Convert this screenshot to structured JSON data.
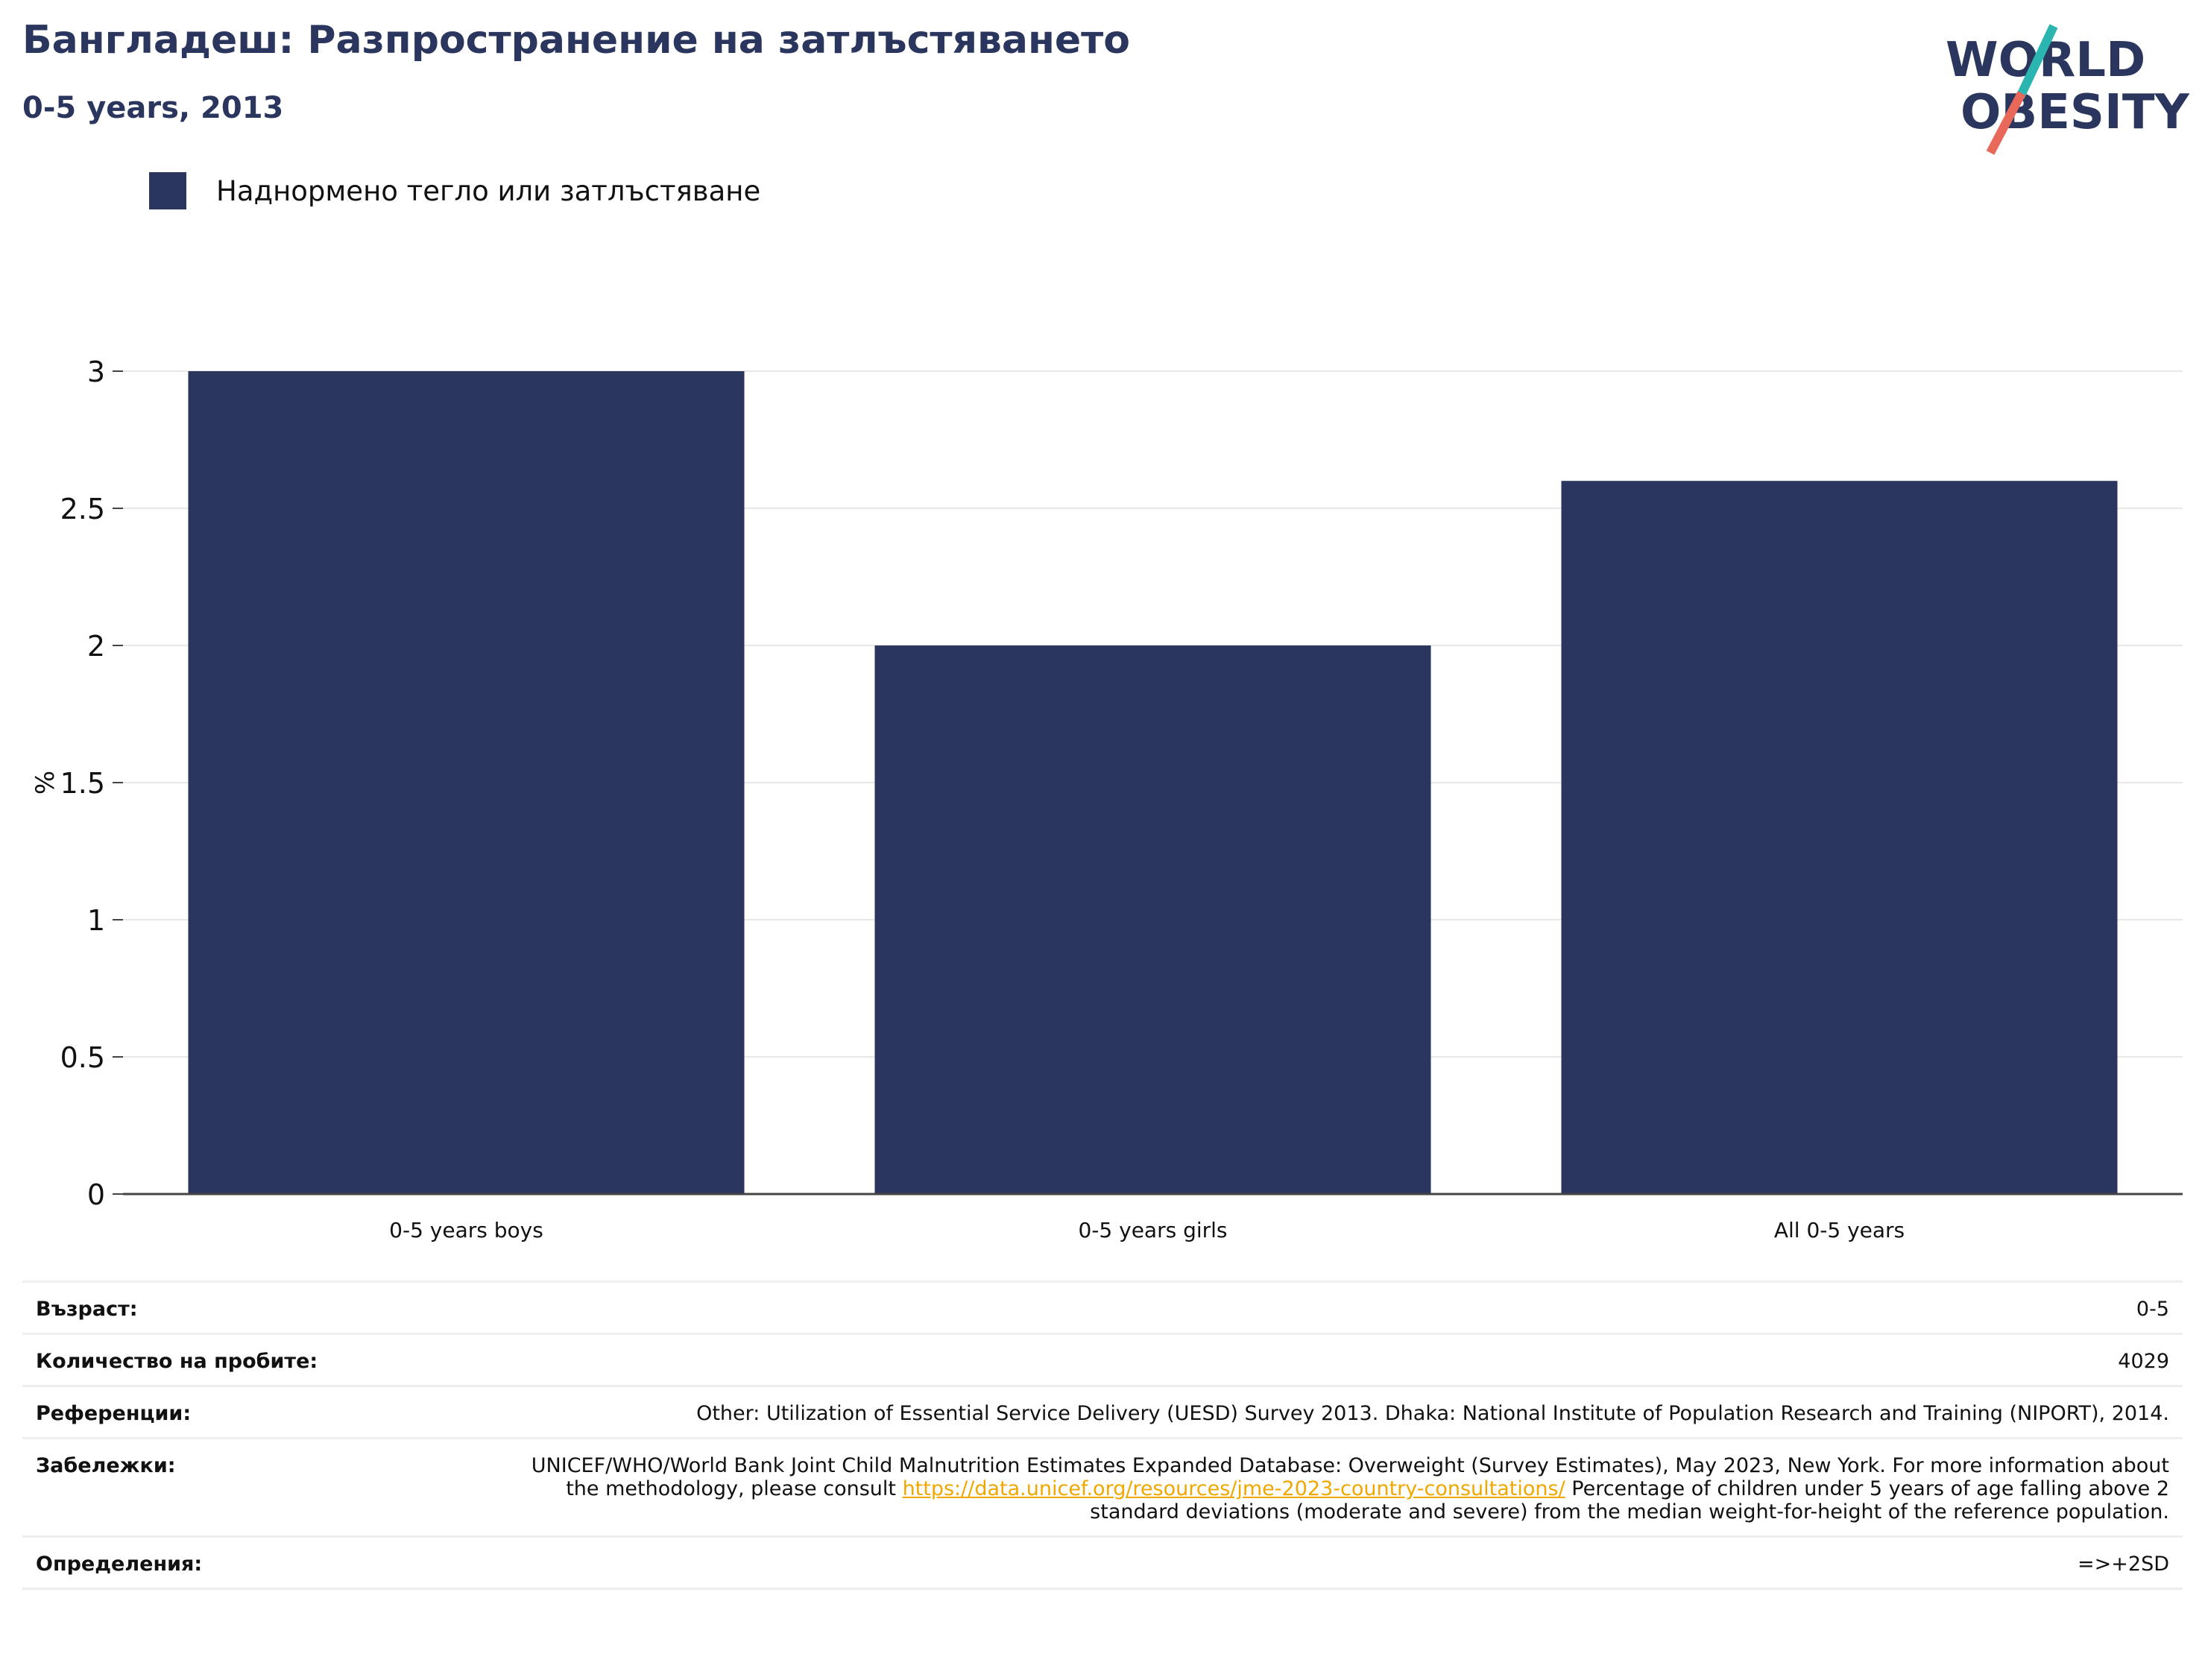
{
  "header": {
    "title": "Бангладеш: Разпространение на затлъстяването",
    "subtitle": "0-5 years, 2013"
  },
  "logo": {
    "line1": "WORLD",
    "line2": "OBESITY",
    "colors": {
      "navy": "#2b365f",
      "teal": "#2bb5b0",
      "coral": "#e8685a"
    }
  },
  "colors": {
    "bar": "#2b365f",
    "link": "#f0a800",
    "grid": "#e8e8e8"
  },
  "chart_data": {
    "type": "bar",
    "title": "Бангладеш: Разпространение на затлъстяването",
    "subtitle": "0-5 years, 2013",
    "categories": [
      "0-5 years boys",
      "0-5 years girls",
      "All 0-5 years"
    ],
    "series": [
      {
        "name": "Наднормено тегло или затлъстяване",
        "values": [
          3.0,
          2.0,
          2.6
        ]
      }
    ],
    "xlabel": "",
    "ylabel": "%",
    "ylim": [
      0,
      3
    ],
    "yticks": [
      "0",
      "0.5",
      "1",
      "1.5",
      "2",
      "2.5",
      "3"
    ],
    "grid": true,
    "legend": "top-left"
  },
  "info": {
    "age_label": "Възраст:",
    "age_value": "0-5",
    "sample_label": "Количество на пробите:",
    "sample_value": "4029",
    "ref_label": "Референции:",
    "ref_value": "Other: Utilization of Essential Service Delivery (UESD) Survey 2013. Dhaka: National Institute of Population Research and Training (NIPORT), 2014.",
    "notes_label": "Забележки:",
    "notes_text1": "UNICEF/WHO/World Bank Joint Child Malnutrition Estimates Expanded Database: Overweight (Survey Estimates), May 2023, New York. For more information about the methodology, please consult ",
    "notes_link": "https://data.unicef.org/resources/jme-2023-country-consultations/",
    "notes_text2": " Percentage of children under 5 years of age falling above 2 standard deviations (moderate and severe) from the median weight-for-height of the reference population.",
    "def_label": "Определения:",
    "def_value": "=>+2SD"
  }
}
